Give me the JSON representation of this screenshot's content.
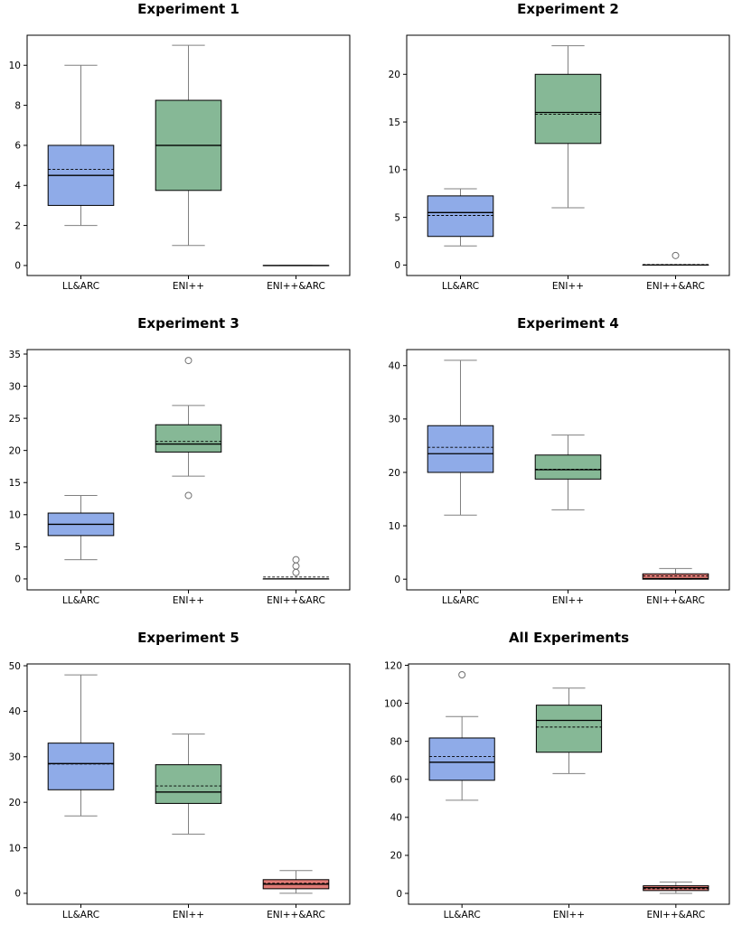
{
  "colors": {
    "LL&ARC": "#8fabe8",
    "ENI++": "#86b896",
    "ENI++&ARC": "#e07b76",
    "whisker": "#808080",
    "box_edge": "#000000"
  },
  "chart_data": [
    {
      "type": "box",
      "title": "Experiment 1",
      "categories": [
        "LL&ARC",
        "ENI++",
        "ENI++&ARC"
      ],
      "ylim": [
        -0.5,
        11.5
      ],
      "yticks": [
        0,
        2,
        4,
        6,
        8,
        10
      ],
      "boxes": [
        {
          "category": "LL&ARC",
          "q1": 3,
          "median": 4.5,
          "q3": 6,
          "whisker_low": 2,
          "whisker_high": 10,
          "mean": 4.8,
          "outliers": []
        },
        {
          "category": "ENI++",
          "q1": 3.75,
          "median": 6,
          "q3": 8.25,
          "whisker_low": 1,
          "whisker_high": 11,
          "mean": 6,
          "outliers": []
        },
        {
          "category": "ENI++&ARC",
          "q1": 0,
          "median": 0,
          "q3": 0,
          "whisker_low": 0,
          "whisker_high": 0,
          "mean": 0,
          "outliers": []
        }
      ]
    },
    {
      "type": "box",
      "title": "Experiment 2",
      "categories": [
        "LL&ARC",
        "ENI++",
        "ENI++&ARC"
      ],
      "ylim": [
        -1.1,
        24.1
      ],
      "yticks": [
        0,
        5,
        10,
        15,
        20
      ],
      "boxes": [
        {
          "category": "LL&ARC",
          "q1": 3,
          "median": 5.5,
          "q3": 7.25,
          "whisker_low": 2,
          "whisker_high": 8,
          "mean": 5.2,
          "outliers": []
        },
        {
          "category": "ENI++",
          "q1": 12.75,
          "median": 16,
          "q3": 20,
          "whisker_low": 6,
          "whisker_high": 23,
          "mean": 15.8,
          "outliers": []
        },
        {
          "category": "ENI++&ARC",
          "q1": 0,
          "median": 0,
          "q3": 0,
          "whisker_low": 0,
          "whisker_high": 0,
          "mean": 0.05,
          "outliers": [
            1
          ]
        }
      ]
    },
    {
      "type": "box",
      "title": "Experiment 3",
      "categories": [
        "LL&ARC",
        "ENI++",
        "ENI++&ARC"
      ],
      "ylim": [
        -1.7,
        35.7
      ],
      "yticks": [
        0,
        5,
        10,
        15,
        20,
        25,
        30,
        35
      ],
      "boxes": [
        {
          "category": "LL&ARC",
          "q1": 6.75,
          "median": 8.5,
          "q3": 10.25,
          "whisker_low": 3,
          "whisker_high": 13,
          "mean": 8.5,
          "outliers": []
        },
        {
          "category": "ENI++",
          "q1": 19.75,
          "median": 21,
          "q3": 24,
          "whisker_low": 16,
          "whisker_high": 27,
          "mean": 21.4,
          "outliers": [
            13,
            34
          ]
        },
        {
          "category": "ENI++&ARC",
          "q1": 0,
          "median": 0,
          "q3": 0,
          "whisker_low": 0,
          "whisker_high": 0,
          "mean": 0.3,
          "outliers": [
            1,
            2,
            3
          ]
        }
      ]
    },
    {
      "type": "box",
      "title": "Experiment 4",
      "categories": [
        "LL&ARC",
        "ENI++",
        "ENI++&ARC"
      ],
      "ylim": [
        -2.0,
        43.0
      ],
      "yticks": [
        0,
        10,
        20,
        30,
        40
      ],
      "boxes": [
        {
          "category": "LL&ARC",
          "q1": 20,
          "median": 23.5,
          "q3": 28.75,
          "whisker_low": 12,
          "whisker_high": 41,
          "mean": 24.7,
          "outliers": []
        },
        {
          "category": "ENI++",
          "q1": 18.75,
          "median": 20.5,
          "q3": 23.25,
          "whisker_low": 13,
          "whisker_high": 27,
          "mean": 20.6,
          "outliers": []
        },
        {
          "category": "ENI++&ARC",
          "q1": 0,
          "median": 0.1,
          "q3": 1,
          "whisker_low": 0,
          "whisker_high": 2,
          "mean": 0.6,
          "outliers": []
        }
      ]
    },
    {
      "type": "box",
      "title": "Experiment 5",
      "categories": [
        "LL&ARC",
        "ENI++",
        "ENI++&ARC"
      ],
      "ylim": [
        -2.4,
        50.4
      ],
      "yticks": [
        0,
        10,
        20,
        30,
        40,
        50
      ],
      "boxes": [
        {
          "category": "LL&ARC",
          "q1": 22.75,
          "median": 28.5,
          "q3": 33,
          "whisker_low": 17,
          "whisker_high": 48,
          "mean": 28.4,
          "outliers": []
        },
        {
          "category": "ENI++",
          "q1": 19.75,
          "median": 22.25,
          "q3": 28.25,
          "whisker_low": 13,
          "whisker_high": 35,
          "mean": 23.6,
          "outliers": []
        },
        {
          "category": "ENI++&ARC",
          "q1": 1,
          "median": 2,
          "q3": 3,
          "whisker_low": 0,
          "whisker_high": 5,
          "mean": 2.2,
          "outliers": []
        }
      ]
    },
    {
      "type": "box",
      "title": "All Experiments",
      "categories": [
        "LL&ARC",
        "ENI++",
        "ENI++&ARC"
      ],
      "ylim": [
        -5.7,
        120.7
      ],
      "yticks": [
        0,
        20,
        40,
        60,
        80,
        100,
        120
      ],
      "boxes": [
        {
          "category": "LL&ARC",
          "q1": 59.5,
          "median": 69,
          "q3": 81.75,
          "whisker_low": 49,
          "whisker_high": 93,
          "mean": 72,
          "outliers": [
            115
          ]
        },
        {
          "category": "ENI++",
          "q1": 74.25,
          "median": 91,
          "q3": 99,
          "whisker_low": 63,
          "whisker_high": 108,
          "mean": 87.5,
          "outliers": []
        },
        {
          "category": "ENI++&ARC",
          "q1": 1.5,
          "median": 3,
          "q3": 4,
          "whisker_low": 0,
          "whisker_high": 6,
          "mean": 2.5,
          "outliers": []
        }
      ]
    }
  ]
}
